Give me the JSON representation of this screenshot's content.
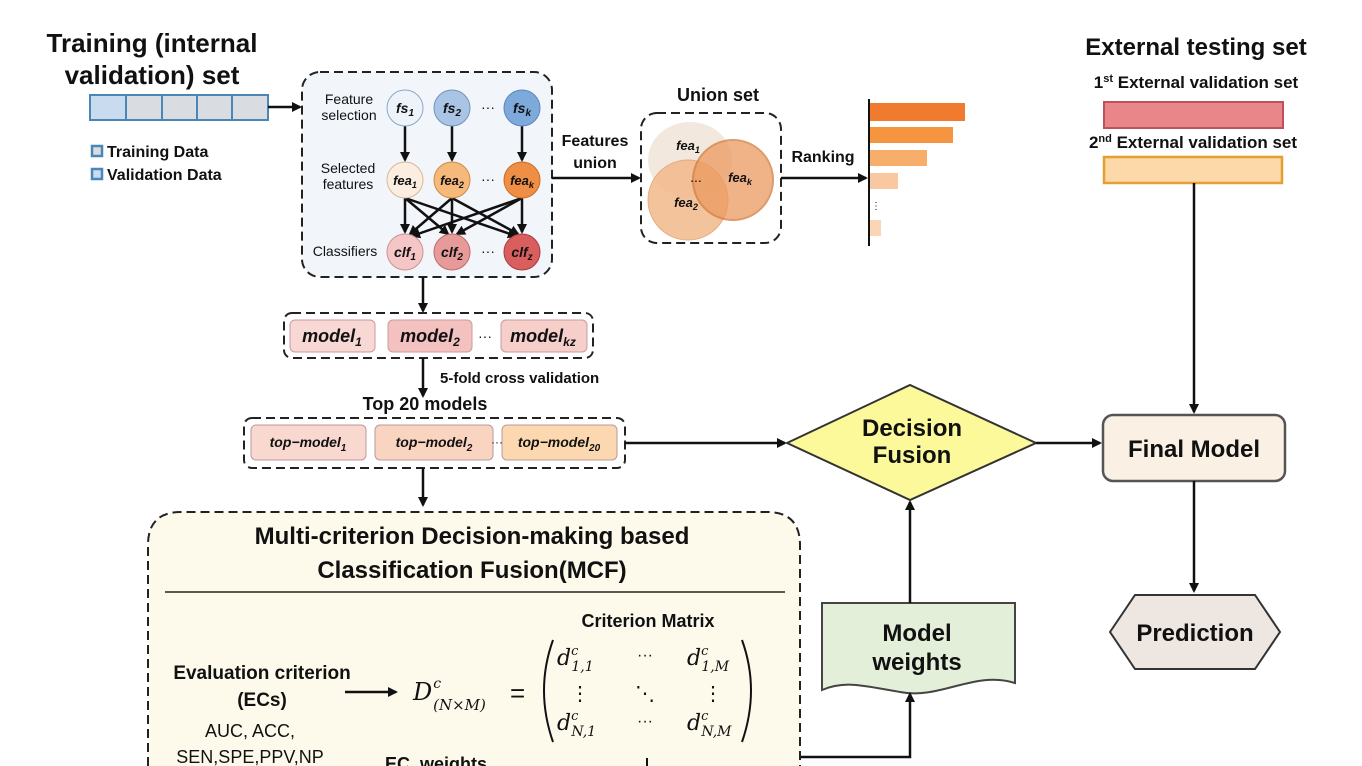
{
  "training": {
    "title_line1": "Training (internal",
    "title_line2": "validation) set",
    "legend": [
      "Training Data",
      "Validation Data"
    ]
  },
  "pipeline": {
    "row_labels": {
      "feature_selection": [
        "Feature",
        "selection"
      ],
      "selected_features": [
        "Selected",
        "features"
      ],
      "classifiers": "Classifiers"
    },
    "fs": [
      {
        "base": "fs",
        "sub": "1"
      },
      {
        "base": "fs",
        "sub": "2"
      },
      {
        "base": "fs",
        "sub": "k"
      }
    ],
    "fea": [
      {
        "base": "fea",
        "sub": "1"
      },
      {
        "base": "fea",
        "sub": "2"
      },
      {
        "base": "fea",
        "sub": "k"
      }
    ],
    "clf": [
      {
        "base": "clf",
        "sub": "1"
      },
      {
        "base": "clf",
        "sub": "2"
      },
      {
        "base": "clf",
        "sub": "z"
      }
    ],
    "ellipsis": "···"
  },
  "features_union": [
    "Features",
    "union"
  ],
  "union_set": {
    "title": "Union set",
    "items": [
      {
        "base": "fea",
        "sub": "1"
      },
      {
        "base": "fea",
        "sub": "2"
      },
      {
        "base": "fea",
        "sub": "k"
      }
    ],
    "ellipsis": "..."
  },
  "ranking": {
    "label": "Ranking",
    "ellipsis": "⋮"
  },
  "external": {
    "title": "External testing set",
    "set1": {
      "num": "1",
      "sup": "st",
      "label": " External validation set"
    },
    "set2": {
      "num": "2",
      "sup": "nd",
      "label": " External validation set"
    }
  },
  "models": [
    {
      "base": "model",
      "sub": "1"
    },
    {
      "base": "model",
      "sub": "2"
    },
    {
      "base": "model",
      "sub": "kz"
    }
  ],
  "cross_validation": "5-fold cross validation",
  "top_models": {
    "title": "Top 20 models",
    "items": [
      {
        "base": "top−model",
        "sub": "1"
      },
      {
        "base": "top−model",
        "sub": "2"
      },
      {
        "base": "top−model",
        "sub": "20"
      }
    ]
  },
  "decision_fusion": [
    "Decision",
    "Fusion"
  ],
  "final_model": "Final Model",
  "prediction": "Prediction",
  "model_weights": [
    "Model",
    "weights"
  ],
  "mcf": {
    "title_line1": "Multi-criterion Decision-making based",
    "title_line2": "Classification Fusion(MCF)",
    "criterion_matrix": "Criterion Matrix",
    "ec_title": [
      "Evaluation criterion",
      "(ECs)"
    ],
    "ec_list": [
      "AUC, ACC,",
      "SEN,SPE,PPV,NP"
    ],
    "ec_weights": "EC_weights",
    "formula": {
      "D": "D",
      "sup": "c",
      "sub": "(N×M)",
      "eq": "="
    },
    "matrix": {
      "d11": {
        "sub": "1,1"
      },
      "d1M": {
        "sub": "1,M"
      },
      "dN1": {
        "sub": "N,1"
      },
      "dNM": {
        "sub": "N,M"
      },
      "letter": "d",
      "sup": "c",
      "hdots": "···",
      "vdots": "⋮",
      "ddots": "⋱"
    }
  },
  "colors": {
    "fs": [
      "#eef3f9",
      "#a9c4e4",
      "#7ea9db"
    ],
    "fea": [
      "#fbeee0",
      "#f5b97b",
      "#ef8f45"
    ],
    "clf": [
      "#f5c6c6",
      "#e69a9a",
      "#d95e5e"
    ],
    "decision_fusion": "#fbf99a",
    "model_weights": "#e4efd9",
    "mcf_bg": "#fdfaec"
  }
}
